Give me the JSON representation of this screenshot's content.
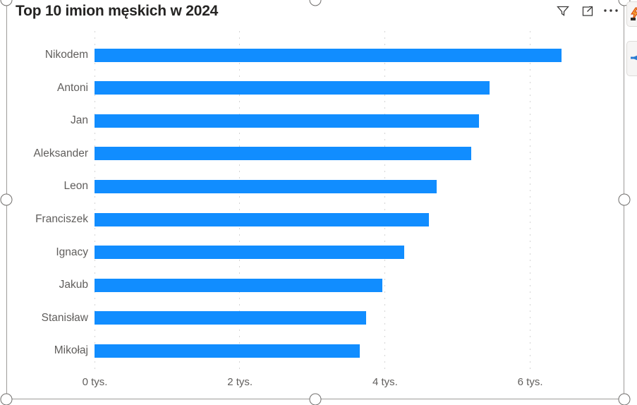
{
  "title": "Top 10 imion męskich w 2024",
  "visual_header": {
    "icons": [
      "filter-funnel",
      "focus-mode",
      "more-options"
    ]
  },
  "chart_data": {
    "type": "bar",
    "orientation": "horizontal",
    "title": "Top 10 imion męskich w 2024",
    "categories": [
      "Nikodem",
      "Antoni",
      "Jan",
      "Aleksander",
      "Leon",
      "Franciszek",
      "Ignacy",
      "Jakub",
      "Stanisław",
      "Mikołaj"
    ],
    "values": [
      6440,
      5440,
      5300,
      5190,
      4720,
      4610,
      4270,
      3970,
      3740,
      3660
    ],
    "x_ticks": [
      {
        "value": 0,
        "label": "0 tys."
      },
      {
        "value": 2000,
        "label": "2 tys."
      },
      {
        "value": 4000,
        "label": "4 tys."
      },
      {
        "value": 6000,
        "label": "6 tys."
      }
    ],
    "xlim": [
      0,
      7200
    ],
    "xlabel": "",
    "ylabel": "",
    "legend": "none",
    "grid": "vertical-dotted",
    "bar_color": "#118DFF"
  },
  "colors": {
    "bar": "#118DFF",
    "title_text": "#252423",
    "axis_text": "#605E5C",
    "gridline": "#D4D4D4",
    "selection": "#9D9B99",
    "background": "#FFFFFF"
  }
}
